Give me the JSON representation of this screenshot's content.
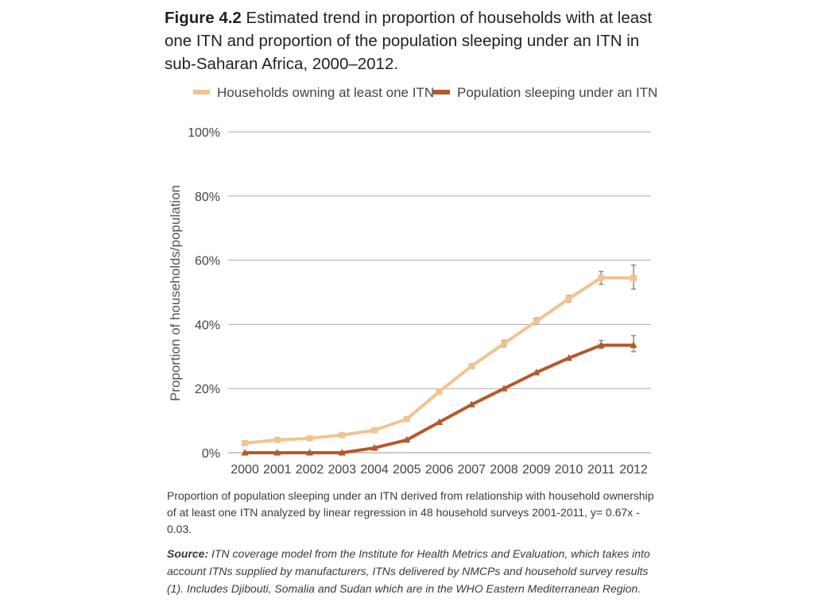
{
  "figure": {
    "label": "Figure 4.2",
    "title": "Estimated trend in proportion of households with at least one ITN and proportion of the population sleeping under an ITN in sub-Saharan Africa, 2000–2012."
  },
  "note": "Proportion of population sleeping under an ITN derived from relationship with household ownership of at least one ITN analyzed by linear regression in 48 household surveys 2001-2011, y= 0.67x - 0.03.",
  "source": {
    "label": "Source:",
    "text": "ITN coverage model from the Institute for Health Metrics and Evaluation, which takes into account ITNs supplied by manufacturers, ITNs delivered by NMCPs and household survey results (1). Includes Djibouti, Somalia and Sudan which are in the WHO Eastern Mediterranean Region."
  },
  "colors": {
    "households": "#f0c490",
    "population": "#b5592a",
    "grid": "#aaaaaa",
    "error_bar": "#8c8c8c",
    "text": "#231f20"
  },
  "chart_data": {
    "type": "line",
    "title": "",
    "xlabel": "",
    "ylabel": "Proportion of households/population",
    "x": [
      "2000",
      "2001",
      "2002",
      "2003",
      "2004",
      "2005",
      "2006",
      "2007",
      "2008",
      "2009",
      "2010",
      "2011",
      "2012"
    ],
    "ylim": [
      0,
      100
    ],
    "yticks": [
      0,
      20,
      40,
      60,
      80,
      100
    ],
    "ytick_labels": [
      "0%",
      "20%",
      "40%",
      "60%",
      "80%",
      "100%"
    ],
    "grid": "horizontal",
    "legend_position": "top",
    "series": [
      {
        "name": "Households owning at least one ITN",
        "color_key": "households",
        "marker": "square",
        "values": [
          3,
          4,
          4.5,
          5.5,
          7,
          10.5,
          19,
          27,
          34,
          41,
          48,
          54.5,
          54.5
        ],
        "error_high": [
          null,
          null,
          null,
          null,
          null,
          null,
          null,
          null,
          35,
          42,
          49,
          56.5,
          58.5
        ],
        "error_low": [
          null,
          null,
          null,
          null,
          null,
          null,
          null,
          null,
          33,
          40,
          47,
          52.5,
          51
        ]
      },
      {
        "name": "Population sleeping under an ITN",
        "color_key": "population",
        "marker": "triangle",
        "values": [
          0,
          0,
          0,
          0,
          1.5,
          4,
          9.5,
          15,
          20,
          25,
          29.5,
          33.5,
          33.5
        ],
        "error_high": [
          null,
          null,
          null,
          null,
          null,
          null,
          null,
          null,
          null,
          null,
          null,
          35,
          36.5
        ],
        "error_low": [
          null,
          null,
          null,
          null,
          null,
          null,
          null,
          null,
          null,
          null,
          null,
          32.5,
          31.5
        ]
      }
    ]
  }
}
